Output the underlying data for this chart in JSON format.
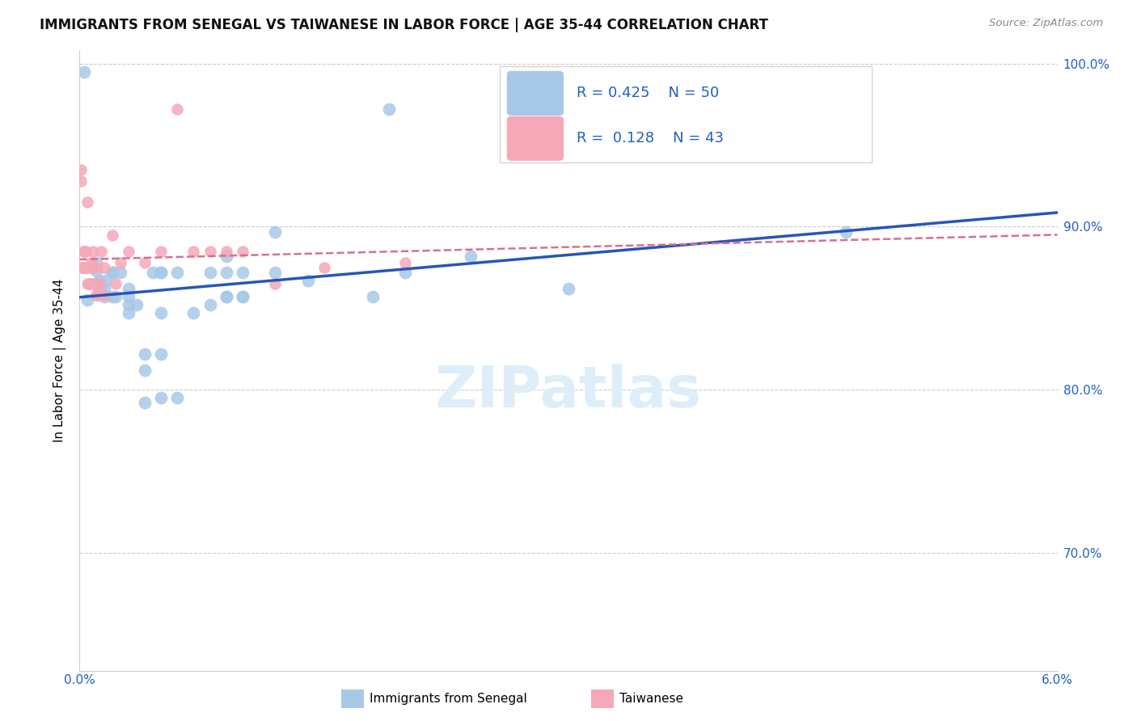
{
  "title": "IMMIGRANTS FROM SENEGAL VS TAIWANESE IN LABOR FORCE | AGE 35-44 CORRELATION CHART",
  "source": "Source: ZipAtlas.com",
  "ylabel": "In Labor Force | Age 35-44",
  "xmin": 0.0,
  "xmax": 0.06,
  "ymin": 0.628,
  "ymax": 1.008,
  "yticks": [
    0.7,
    0.8,
    0.9,
    1.0
  ],
  "ytick_labels": [
    "70.0%",
    "80.0%",
    "90.0%",
    "100.0%"
  ],
  "xtick_positions": [
    0.0,
    0.01,
    0.02,
    0.03,
    0.04,
    0.05,
    0.06
  ],
  "xtick_labels": [
    "0.0%",
    "",
    "",
    "",
    "",
    "",
    "6.0%"
  ],
  "R_senegal": 0.425,
  "N_senegal": 50,
  "R_taiwanese": 0.128,
  "N_taiwanese": 43,
  "color_senegal": "#a8c8e8",
  "color_taiwanese": "#f4a8b8",
  "trendline_senegal": "#2855b8",
  "trendline_taiwanese": "#d87090",
  "watermark": "ZIPatlas",
  "watermark_color": "#ddeef8",
  "legend_label_senegal": "Immigrants from Senegal",
  "legend_label_taiwanese": "Taiwanese",
  "senegal_x": [
    0.0003,
    0.0005,
    0.001,
    0.001,
    0.0012,
    0.0012,
    0.0015,
    0.0015,
    0.0016,
    0.002,
    0.002,
    0.002,
    0.002,
    0.0022,
    0.0025,
    0.003,
    0.003,
    0.003,
    0.003,
    0.0035,
    0.004,
    0.004,
    0.004,
    0.0045,
    0.005,
    0.005,
    0.005,
    0.005,
    0.005,
    0.006,
    0.006,
    0.007,
    0.008,
    0.008,
    0.009,
    0.009,
    0.009,
    0.009,
    0.01,
    0.01,
    0.01,
    0.012,
    0.012,
    0.014,
    0.018,
    0.019,
    0.02,
    0.024,
    0.03,
    0.047
  ],
  "senegal_y": [
    0.995,
    0.855,
    0.873,
    0.878,
    0.862,
    0.867,
    0.857,
    0.862,
    0.867,
    0.872,
    0.857,
    0.872,
    0.872,
    0.857,
    0.872,
    0.847,
    0.852,
    0.857,
    0.862,
    0.852,
    0.792,
    0.812,
    0.822,
    0.872,
    0.847,
    0.872,
    0.872,
    0.795,
    0.822,
    0.795,
    0.872,
    0.847,
    0.872,
    0.852,
    0.872,
    0.857,
    0.882,
    0.857,
    0.857,
    0.872,
    0.857,
    0.872,
    0.897,
    0.867,
    0.857,
    0.972,
    0.872,
    0.882,
    0.862,
    0.897
  ],
  "taiwanese_x": [
    0.0001,
    0.0001,
    0.0002,
    0.0002,
    0.0003,
    0.0003,
    0.0003,
    0.0004,
    0.0004,
    0.0005,
    0.0005,
    0.0005,
    0.0005,
    0.0006,
    0.0006,
    0.0006,
    0.0007,
    0.0007,
    0.0008,
    0.0008,
    0.001,
    0.001,
    0.001,
    0.001,
    0.0012,
    0.0012,
    0.0013,
    0.0015,
    0.0015,
    0.002,
    0.0022,
    0.0025,
    0.003,
    0.004,
    0.005,
    0.006,
    0.007,
    0.008,
    0.009,
    0.01,
    0.012,
    0.015,
    0.02
  ],
  "taiwanese_y": [
    0.928,
    0.935,
    0.875,
    0.875,
    0.875,
    0.885,
    0.885,
    0.875,
    0.885,
    0.865,
    0.875,
    0.875,
    0.915,
    0.865,
    0.865,
    0.875,
    0.865,
    0.878,
    0.875,
    0.885,
    0.858,
    0.858,
    0.865,
    0.875,
    0.858,
    0.865,
    0.885,
    0.858,
    0.875,
    0.895,
    0.865,
    0.878,
    0.885,
    0.878,
    0.885,
    0.972,
    0.885,
    0.885,
    0.885,
    0.885,
    0.865,
    0.875,
    0.878
  ]
}
